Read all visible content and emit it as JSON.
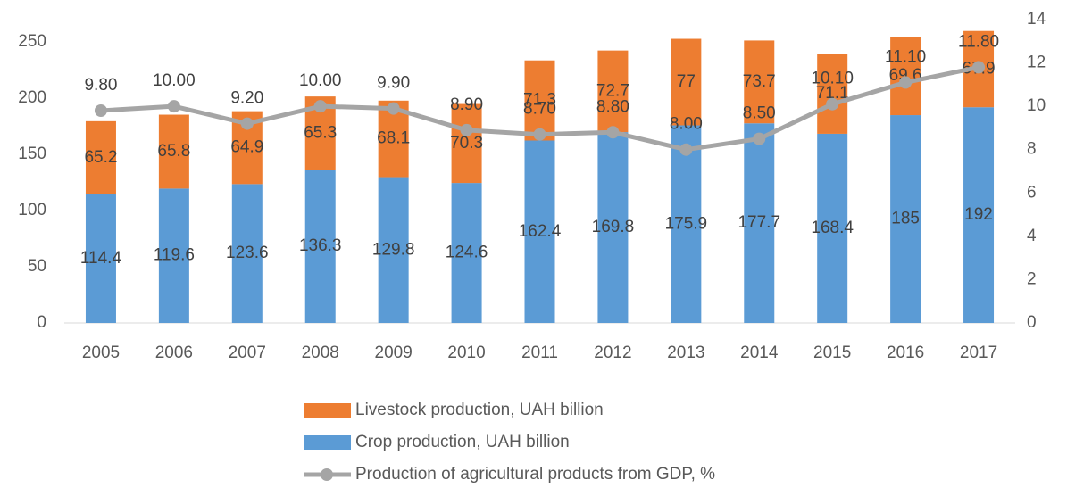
{
  "chart_data": {
    "type": "bar",
    "stacked": true,
    "categories": [
      "2005",
      "2006",
      "2007",
      "2008",
      "2009",
      "2010",
      "2011",
      "2012",
      "2013",
      "2014",
      "2015",
      "2016",
      "2017"
    ],
    "series": [
      {
        "name": "Livestock production, UAH billion",
        "color": "#ed7d31",
        "type": "bar",
        "values": [
          65.2,
          65.8,
          64.9,
          65.3,
          68.1,
          70.3,
          71.3,
          72.7,
          77,
          73.7,
          71.1,
          69.6,
          67.9
        ]
      },
      {
        "name": "Crop production, UAH billion",
        "color": "#5b9bd5",
        "type": "bar",
        "values": [
          114.4,
          119.6,
          123.6,
          136.3,
          129.8,
          124.6,
          162.4,
          169.8,
          175.9,
          177.7,
          168.4,
          185,
          192
        ]
      },
      {
        "name": "Production of agricultural products from GDP, %",
        "color": "#a5a5a5",
        "type": "line",
        "axis": "y2",
        "values": [
          9.8,
          10,
          9.2,
          10,
          9.9,
          8.9,
          8.7,
          8.8,
          8,
          8.5,
          10.1,
          11.1,
          11.8
        ],
        "value_labels": [
          "9.80",
          "10.00",
          "9.20",
          "10.00",
          "9.90",
          "8.90",
          "8.70",
          "8.80",
          "8.00",
          "8.50",
          "10.10",
          "11.10",
          "11.80"
        ]
      }
    ],
    "ylim": [
      0,
      270
    ],
    "yticks": [
      0,
      50,
      100,
      150,
      200,
      250
    ],
    "y2lim": [
      0,
      14
    ],
    "y2ticks": [
      0,
      2,
      4,
      6,
      8,
      10,
      12,
      14
    ],
    "grid": false,
    "legend": "bottom"
  }
}
